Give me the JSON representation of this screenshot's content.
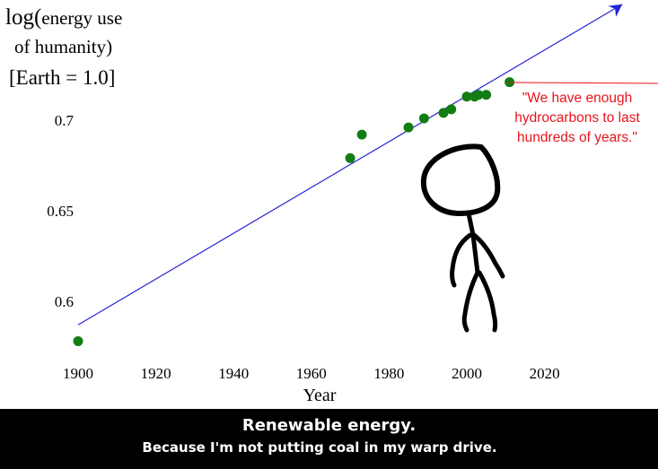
{
  "chart_data": {
    "type": "scatter",
    "ylabel_lines": [
      "log(",
      "energy use",
      "of humanity)",
      "[Earth = 1.0]"
    ],
    "xlabel": "Year",
    "x_ticks": [
      1900,
      1920,
      1940,
      1960,
      1980,
      2000,
      2020
    ],
    "y_ticks": [
      "0.6",
      "0.65",
      "0.7"
    ],
    "xlim": [
      1900,
      2040
    ],
    "ylim": [
      0.575,
      0.76
    ],
    "grid": false,
    "points": [
      {
        "x": 1900,
        "y": 0.578
      },
      {
        "x": 1970,
        "y": 0.679
      },
      {
        "x": 1973,
        "y": 0.692
      },
      {
        "x": 1985,
        "y": 0.696
      },
      {
        "x": 1989,
        "y": 0.701
      },
      {
        "x": 1994,
        "y": 0.704
      },
      {
        "x": 1996,
        "y": 0.706
      },
      {
        "x": 2000,
        "y": 0.713
      },
      {
        "x": 2002,
        "y": 0.713
      },
      {
        "x": 2003,
        "y": 0.714
      },
      {
        "x": 2005,
        "y": 0.714
      },
      {
        "x": 2011,
        "y": 0.721
      }
    ],
    "trend_line": {
      "x_start": 1900,
      "y_start": 0.587,
      "x_end": 2040,
      "y_end": 0.764
    },
    "point_color": "#127d12",
    "line_color": "#2424d6",
    "annotation": {
      "lines": [
        "\"We have enough",
        "hydrocarbons to last",
        "hundreds of years.\""
      ],
      "color": "#e8141c"
    }
  },
  "caption": {
    "title": "Renewable energy.",
    "subtitle": "Because I'm not putting coal in my warp drive."
  }
}
